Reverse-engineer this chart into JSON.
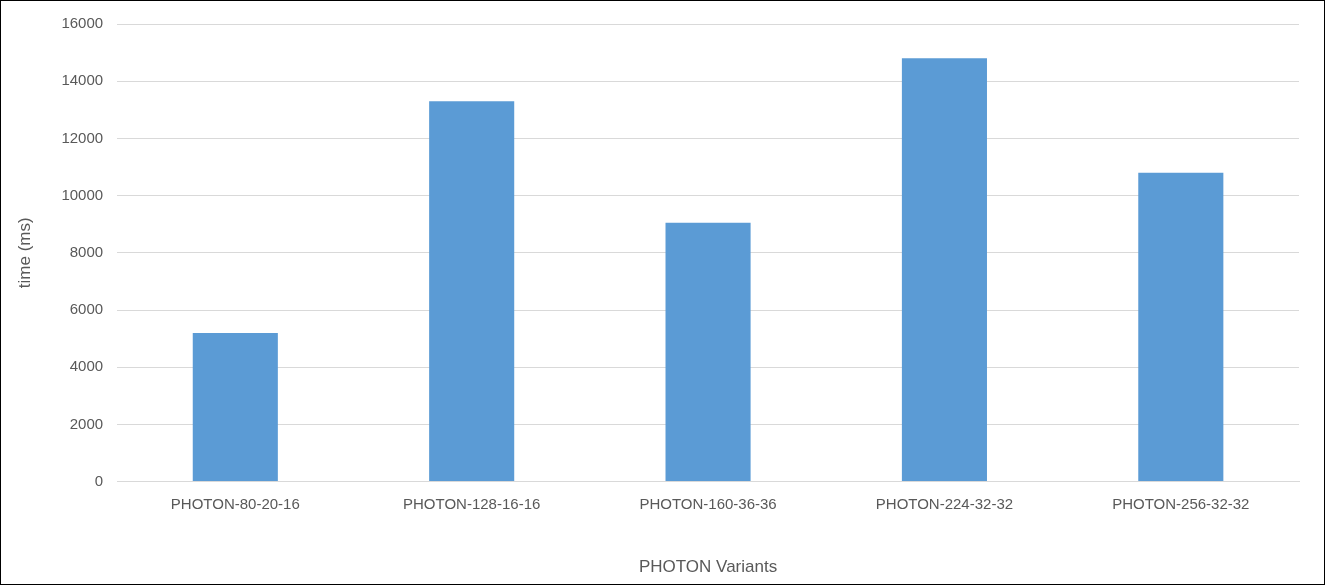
{
  "chart_data": {
    "type": "bar",
    "xlabel": "PHOTON Variants",
    "ylabel": "time (ms)",
    "categories": [
      "PHOTON-80-20-16",
      "PHOTON-128-16-16",
      "PHOTON-160-36-36",
      "PHOTON-224-32-32",
      "PHOTON-256-32-32"
    ],
    "values": [
      5200,
      13300,
      9050,
      14800,
      10800
    ],
    "color": "#5b9bd5",
    "ylim": [
      0,
      16000
    ],
    "yticks": [
      0,
      2000,
      4000,
      6000,
      8000,
      10000,
      12000,
      14000,
      16000
    ],
    "grid": "y",
    "legend": false
  }
}
